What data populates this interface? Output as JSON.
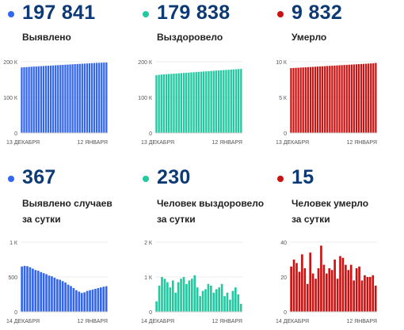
{
  "colors": {
    "blue": "#3366ee",
    "green": "#22c9a0",
    "red": "#cc1111",
    "navy": "#0d3a75"
  },
  "top": [
    {
      "value": "197 841",
      "label": "Выявлено",
      "color": "#3366ee",
      "chart_data": {
        "type": "bar",
        "yticks": [
          "200 К",
          "100 К",
          "0"
        ],
        "ylim": [
          0,
          200000
        ],
        "xlabels": [
          "13 ДЕКАБРЯ",
          "12 ЯНВАРЯ"
        ],
        "values": [
          184000,
          184500,
          185000,
          185500,
          186000,
          186400,
          186800,
          187200,
          187600,
          188000,
          188400,
          188800,
          189200,
          189600,
          190000,
          190400,
          190800,
          191200,
          191600,
          192000,
          192400,
          192800,
          193200,
          193600,
          194000,
          194400,
          194800,
          195200,
          195600,
          196000,
          196400,
          196800,
          197000,
          197300,
          197600,
          197841
        ]
      }
    },
    {
      "value": "179 838",
      "label": "Выздоровело",
      "color": "#22c9a0",
      "chart_data": {
        "type": "bar",
        "yticks": [
          "200 К",
          "100 К",
          "0"
        ],
        "ylim": [
          0,
          200000
        ],
        "xlabels": [
          "13 ДЕКАБРЯ",
          "12 ЯНВАРЯ"
        ],
        "values": [
          162000,
          163000,
          164000,
          164500,
          165000,
          165500,
          166000,
          166500,
          167000,
          167500,
          168000,
          168500,
          169000,
          169500,
          170000,
          170500,
          171000,
          171500,
          172000,
          172500,
          173000,
          173500,
          174000,
          174500,
          175000,
          175500,
          176000,
          176500,
          177000,
          177500,
          178000,
          178500,
          179000,
          179400,
          179838
        ]
      }
    },
    {
      "value": "9 832",
      "label": "Умерло",
      "color": "#cc1111",
      "chart_data": {
        "type": "bar",
        "yticks": [
          "10 К",
          "5 К",
          "0"
        ],
        "ylim": [
          0,
          10000
        ],
        "xlabels": [
          "13 ДЕКАБРЯ",
          "12 ЯНВАРЯ"
        ],
        "values": [
          9100,
          9120,
          9140,
          9160,
          9180,
          9200,
          9220,
          9240,
          9260,
          9280,
          9300,
          9320,
          9340,
          9360,
          9380,
          9400,
          9420,
          9440,
          9460,
          9480,
          9500,
          9520,
          9540,
          9560,
          9580,
          9600,
          9620,
          9640,
          9660,
          9680,
          9700,
          9720,
          9740,
          9760,
          9790,
          9832
        ]
      }
    }
  ],
  "bottom": [
    {
      "value": "367",
      "label1": "Выявлено случаев",
      "label2": "за сутки",
      "color": "#3366ee",
      "chart_data": {
        "type": "area-bar",
        "yticks": [
          "1 К",
          "500",
          "0"
        ],
        "ylim": [
          0,
          1000
        ],
        "xlabels": [
          "14 ДЕКАБРЯ",
          "12 ЯНВАРЯ"
        ],
        "values": [
          650,
          660,
          655,
          640,
          620,
          600,
          590,
          570,
          555,
          540,
          520,
          510,
          490,
          470,
          460,
          440,
          420,
          390,
          370,
          340,
          310,
          290,
          270,
          280,
          300,
          310,
          320,
          330,
          340,
          350,
          360,
          367
        ]
      }
    },
    {
      "value": "230",
      "label1": "Человек выздоровело",
      "label2": "за сутки",
      "color": "#22c9a0",
      "chart_data": {
        "type": "bar",
        "yticks": [
          "2 К",
          "1 К",
          "0"
        ],
        "ylim": [
          0,
          2000
        ],
        "xlabels": [
          "14 ДЕКАБРЯ",
          "12 ЯНВАРЯ"
        ],
        "values": [
          300,
          750,
          1000,
          950,
          850,
          700,
          900,
          550,
          850,
          950,
          1000,
          800,
          900,
          950,
          1050,
          700,
          450,
          600,
          650,
          800,
          750,
          550,
          650,
          700,
          800,
          450,
          550,
          350,
          600,
          700,
          500,
          230
        ]
      }
    },
    {
      "value": "15",
      "label1": "Человек умерло",
      "label2": "за сутки",
      "color": "#cc1111",
      "chart_data": {
        "type": "bar",
        "yticks": [
          "40",
          "20",
          "0"
        ],
        "ylim": [
          0,
          40
        ],
        "xlabels": [
          "14 ДЕКАБРЯ",
          "12 ЯНВАРЯ"
        ],
        "values": [
          26,
          30,
          28,
          23,
          33,
          25,
          16,
          34,
          22,
          19,
          25,
          38,
          27,
          22,
          25,
          24,
          30,
          19,
          32,
          31,
          27,
          24,
          27,
          18,
          25,
          26,
          18,
          21,
          20,
          20,
          21,
          15
        ]
      }
    }
  ]
}
